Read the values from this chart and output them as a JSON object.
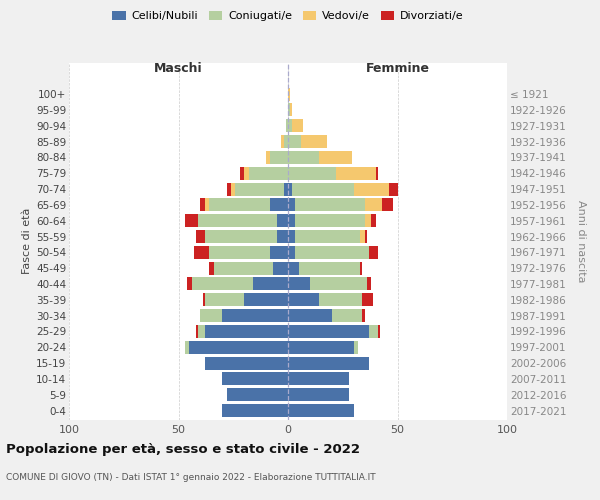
{
  "age_groups": [
    "0-4",
    "5-9",
    "10-14",
    "15-19",
    "20-24",
    "25-29",
    "30-34",
    "35-39",
    "40-44",
    "45-49",
    "50-54",
    "55-59",
    "60-64",
    "65-69",
    "70-74",
    "75-79",
    "80-84",
    "85-89",
    "90-94",
    "95-99",
    "100+"
  ],
  "birth_years": [
    "2017-2021",
    "2012-2016",
    "2007-2011",
    "2002-2006",
    "1997-2001",
    "1992-1996",
    "1987-1991",
    "1982-1986",
    "1977-1981",
    "1972-1976",
    "1967-1971",
    "1962-1966",
    "1957-1961",
    "1952-1956",
    "1947-1951",
    "1942-1946",
    "1937-1941",
    "1932-1936",
    "1927-1931",
    "1922-1926",
    "≤ 1921"
  ],
  "males_celibi": [
    30,
    28,
    30,
    38,
    45,
    38,
    30,
    20,
    16,
    7,
    8,
    5,
    5,
    8,
    2,
    0,
    0,
    0,
    0,
    0,
    0
  ],
  "males_coniugati": [
    0,
    0,
    0,
    0,
    2,
    3,
    10,
    18,
    28,
    27,
    28,
    33,
    36,
    28,
    22,
    18,
    8,
    2,
    1,
    0,
    0
  ],
  "males_vedovi": [
    0,
    0,
    0,
    0,
    0,
    0,
    0,
    0,
    0,
    0,
    0,
    0,
    0,
    2,
    2,
    2,
    2,
    1,
    0,
    0,
    0
  ],
  "males_divorziati": [
    0,
    0,
    0,
    0,
    0,
    1,
    0,
    1,
    2,
    2,
    7,
    4,
    6,
    2,
    2,
    2,
    0,
    0,
    0,
    0,
    0
  ],
  "females_nubili": [
    30,
    28,
    28,
    37,
    30,
    37,
    20,
    14,
    10,
    5,
    3,
    3,
    3,
    3,
    2,
    0,
    0,
    0,
    0,
    0,
    0
  ],
  "females_coniugate": [
    0,
    0,
    0,
    0,
    2,
    4,
    14,
    20,
    26,
    28,
    34,
    30,
    32,
    32,
    28,
    22,
    14,
    6,
    2,
    1,
    0
  ],
  "females_vedove": [
    0,
    0,
    0,
    0,
    0,
    0,
    0,
    0,
    0,
    0,
    0,
    2,
    3,
    8,
    16,
    18,
    15,
    12,
    5,
    1,
    1
  ],
  "females_divorziate": [
    0,
    0,
    0,
    0,
    0,
    1,
    1,
    5,
    2,
    1,
    4,
    1,
    2,
    5,
    4,
    1,
    0,
    0,
    0,
    0,
    0
  ],
  "color_celibi": "#4a72a8",
  "color_coniugati": "#b5cfa0",
  "color_vedovi": "#f5c86e",
  "color_divorziati": "#cc2222",
  "bg_color": "#f0f0f0",
  "plot_bg": "#ffffff",
  "xlim": 100,
  "legend_labels": [
    "Celibi/Nubili",
    "Coniugati/e",
    "Vedovi/e",
    "Divorziati/e"
  ],
  "title": "Popolazione per età, sesso e stato civile - 2022",
  "subtitle": "COMUNE DI GIOVO (TN) - Dati ISTAT 1° gennaio 2022 - Elaborazione TUTTITALIA.IT",
  "ylabel_left": "Fasce di età",
  "ylabel_right": "Anni di nascita",
  "label_maschi": "Maschi",
  "label_femmine": "Femmine"
}
